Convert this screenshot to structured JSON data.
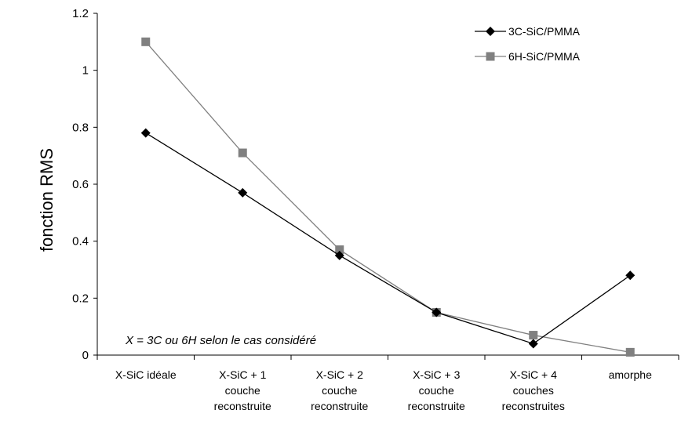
{
  "chart_data": {
    "type": "line",
    "categories": [
      [
        "X-SiC idéale"
      ],
      [
        "X-SiC + 1",
        "couche",
        "reconstruite"
      ],
      [
        "X-SiC + 2",
        "couche",
        "reconstruite"
      ],
      [
        "X-SiC + 3",
        "couche",
        "reconstruite"
      ],
      [
        "X-SiC + 4",
        "couches",
        "reconstruites"
      ],
      [
        "amorphe"
      ]
    ],
    "series": [
      {
        "name": "3C-SiC/PMMA",
        "values": [
          0.78,
          0.57,
          0.35,
          0.15,
          0.04,
          0.28
        ],
        "color": "#000000",
        "marker": "diamond"
      },
      {
        "name": "6H-SiC/PMMA",
        "values": [
          1.1,
          0.71,
          0.37,
          0.15,
          0.07,
          0.01
        ],
        "color": "#808080",
        "marker": "square"
      }
    ],
    "ylabel": "fonction RMS",
    "xlabel": "",
    "ylim": [
      0,
      1.2
    ],
    "yticks": [
      0,
      0.2,
      0.4,
      0.6,
      0.8,
      1,
      1.2
    ],
    "ytick_labels": [
      "0",
      "0.2",
      "0.4",
      "0.6",
      "0.8",
      "1",
      "1.2"
    ],
    "annotation": "X = 3C ou 6H selon le cas considéré",
    "legend": "top-right",
    "grid": false
  }
}
